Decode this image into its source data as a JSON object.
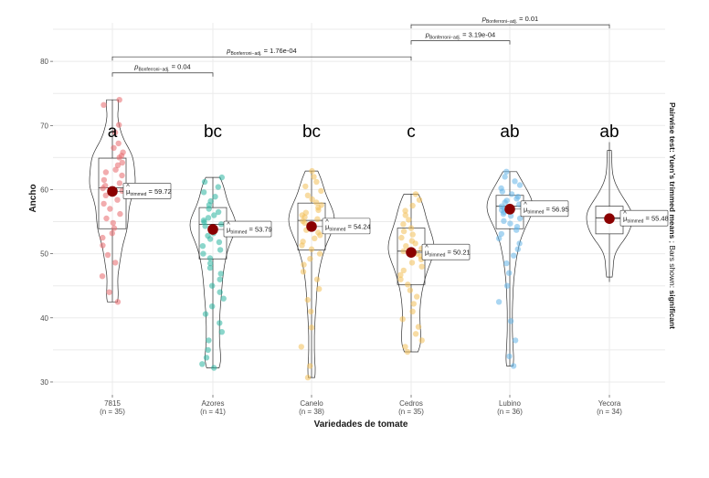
{
  "chart_data": {
    "type": "violin-box-scatter",
    "xlabel": "Variedades de tomate",
    "ylabel": "Ancho",
    "ylim": [
      28,
      86
    ],
    "yticks": [
      30,
      40,
      50,
      60,
      70,
      80
    ],
    "grid": true,
    "subtitle_side": "Pairwise test: Yuen's trimmed means ; Bars shown: significant",
    "side_main": "Pairwise test: Yuen's trimmed means",
    "side_mid": " ; Bars shown: ",
    "side_end": "significant",
    "mu_symbol": "μ",
    "mu_sub": "trimmed",
    "p_symbol": "p",
    "p_sub": "Bonferroni−adj.",
    "groups": [
      {
        "name": "7815",
        "n_label": "(n = 35)",
        "color": "#e8686b",
        "letter": "a",
        "mean": 59.72,
        "mean_label": "59.72",
        "q1": 53.9,
        "median": 60.3,
        "q3": 64.9,
        "whisker_low": 42.5,
        "whisker_high": 74.0,
        "points": [
          74,
          73.2,
          70.1,
          68.9,
          67.2,
          66.5,
          65.8,
          65.3,
          65.0,
          64.2,
          63.8,
          63.1,
          62.7,
          62.2,
          61.5,
          61.0,
          60.6,
          60.2,
          59.8,
          59.1,
          58.4,
          57.8,
          57.0,
          56.2,
          55.5,
          54.8,
          54.0,
          53.2,
          52.5,
          51.3,
          49.8,
          48.6,
          46.5,
          44.0,
          42.5
        ]
      },
      {
        "name": "Azores",
        "n_label": "(n = 41)",
        "color": "#2cb5a0",
        "letter": "bc",
        "mean": 53.79,
        "mean_label": "53.79",
        "q1": 49.2,
        "median": 54.6,
        "q3": 57.2,
        "whisker_low": 32.2,
        "whisker_high": 61.9,
        "points": [
          61.9,
          61.2,
          60.4,
          59.6,
          58.9,
          58.2,
          57.6,
          57.0,
          56.5,
          56.0,
          55.6,
          55.2,
          54.9,
          54.6,
          54.3,
          54.0,
          53.6,
          53.2,
          52.8,
          52.3,
          51.8,
          51.2,
          50.6,
          50.0,
          49.3,
          48.5,
          47.8,
          46.9,
          46.0,
          45.0,
          44.0,
          43.0,
          41.8,
          40.6,
          39.2,
          37.8,
          36.5,
          35.0,
          33.8,
          32.8,
          32.2
        ]
      },
      {
        "name": "Canelo",
        "n_label": "(n = 38)",
        "color": "#f2c057",
        "letter": "bc",
        "mean": 54.24,
        "mean_label": "54.24",
        "q1": 50.6,
        "median": 55.2,
        "q3": 57.9,
        "whisker_low": 30.7,
        "whisker_high": 62.9,
        "points": [
          62.9,
          62.0,
          61.2,
          60.5,
          59.8,
          59.1,
          58.5,
          58.0,
          57.6,
          57.2,
          56.8,
          56.4,
          56.0,
          55.7,
          55.4,
          55.1,
          54.8,
          54.5,
          54.1,
          53.7,
          53.3,
          52.9,
          52.4,
          51.9,
          51.3,
          50.7,
          50.0,
          49.2,
          48.3,
          47.2,
          46.0,
          44.5,
          42.8,
          41.0,
          38.5,
          35.5,
          32.5,
          30.7
        ]
      },
      {
        "name": "Cedros",
        "n_label": "(n = 35)",
        "color": "#f2c057",
        "letter": "c",
        "mean": 50.21,
        "mean_label": "50.21",
        "q1": 45.2,
        "median": 50.4,
        "q3": 54.0,
        "whisker_low": 34.7,
        "whisker_high": 59.3,
        "points": [
          59.3,
          58.4,
          57.5,
          56.7,
          56.0,
          55.3,
          54.6,
          54.0,
          53.5,
          53.0,
          52.5,
          52.0,
          51.6,
          51.2,
          50.8,
          50.4,
          50.0,
          49.6,
          49.1,
          48.6,
          48.0,
          47.4,
          46.7,
          46.0,
          45.2,
          44.3,
          43.3,
          42.2,
          41.0,
          39.8,
          38.6,
          37.5,
          36.5,
          35.5,
          34.7
        ]
      },
      {
        "name": "Lubino",
        "n_label": "(n = 36)",
        "color": "#64b5e8",
        "letter": "ab",
        "mean": 56.95,
        "mean_label": "56.95",
        "q1": 53.9,
        "median": 57.4,
        "q3": 59.1,
        "whisker_low": 32.5,
        "whisker_high": 62.8,
        "points": [
          62.8,
          62.0,
          61.3,
          60.7,
          60.2,
          59.7,
          59.3,
          58.9,
          58.6,
          58.3,
          58.0,
          57.7,
          57.4,
          57.1,
          56.8,
          56.5,
          56.2,
          55.9,
          55.5,
          55.1,
          54.7,
          54.2,
          53.7,
          53.1,
          52.4,
          51.6,
          50.7,
          49.7,
          48.5,
          47.0,
          45.0,
          42.5,
          39.5,
          36.5,
          34.0,
          32.5
        ]
      },
      {
        "name": "Yecora",
        "n_label": "(n = 34)",
        "color": "#ffffff",
        "letter": "ab",
        "mean": 55.48,
        "mean_label": "55.48",
        "q1": 53.1,
        "median": 55.6,
        "q3": 57.4,
        "whisker_low": 45.6,
        "whisker_high": 67.4,
        "points": []
      }
    ],
    "comparisons": [
      {
        "from": "7815",
        "to": "Azores",
        "p_value": "0.04",
        "y": 78.2
      },
      {
        "from": "7815",
        "to": "Cedros",
        "p_value": "1.76e-04",
        "y": 80.7
      },
      {
        "from": "Cedros",
        "to": "Lubino",
        "p_value": "3.19e-04",
        "y": 83.2
      },
      {
        "from": "Cedros",
        "to": "Yecora",
        "p_value": "0.01",
        "y": 85.7
      }
    ]
  }
}
